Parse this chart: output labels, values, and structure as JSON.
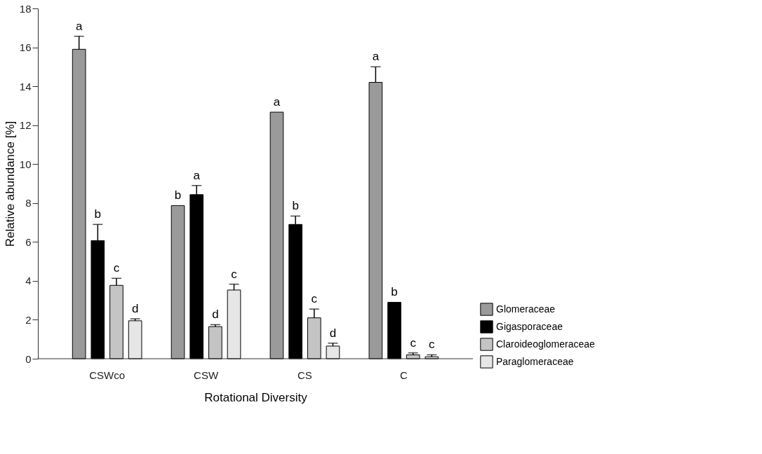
{
  "chart_data": {
    "type": "bar",
    "xlabel": "Rotational Diversity",
    "ylabel": "Relative abundance [%]",
    "categories": [
      "CSWco",
      "CSW",
      "CS",
      "C"
    ],
    "series": [
      {
        "name": "Glomeraceae",
        "color": "#9a9a9a",
        "values": [
          15.9,
          7.87,
          12.67,
          14.2
        ],
        "errors": [
          [
            15.9,
            16.57
          ],
          null,
          null,
          [
            14.2,
            15.0
          ]
        ],
        "value_labels": [
          "a",
          "b",
          "a",
          "a"
        ]
      },
      {
        "name": "Gigasporaceae",
        "color": "#000000",
        "values": [
          6.07,
          8.43,
          6.9,
          2.9
        ],
        "errors": [
          [
            6.07,
            6.9
          ],
          [
            8.43,
            8.9
          ],
          [
            6.9,
            7.33
          ],
          null
        ],
        "value_labels": [
          "b",
          "a",
          "b",
          "b"
        ]
      },
      {
        "name": "Claroideoglomeraceae",
        "color": "#c4c4c4",
        "values": [
          3.77,
          1.65,
          2.1,
          0.2
        ],
        "errors": [
          [
            3.77,
            4.13
          ],
          [
            1.65,
            1.75
          ],
          [
            2.1,
            2.55
          ],
          [
            0.2,
            0.3
          ]
        ],
        "value_labels": [
          "c",
          "d",
          "c",
          "c"
        ]
      },
      {
        "name": "Paraglomeraceae",
        "color": "#e6e6e6",
        "values": [
          1.95,
          3.53,
          0.65,
          0.1
        ],
        "errors": [
          [
            1.95,
            2.05
          ],
          [
            3.53,
            3.83
          ],
          [
            0.65,
            0.8
          ],
          [
            0.1,
            0.2
          ]
        ],
        "value_labels": [
          "d",
          "c",
          "d",
          "c"
        ]
      }
    ],
    "ylim": [
      0,
      18
    ],
    "yticks": [
      0,
      2,
      4,
      6,
      8,
      10,
      12,
      14,
      16,
      18
    ],
    "grid": false,
    "legend": "right"
  }
}
